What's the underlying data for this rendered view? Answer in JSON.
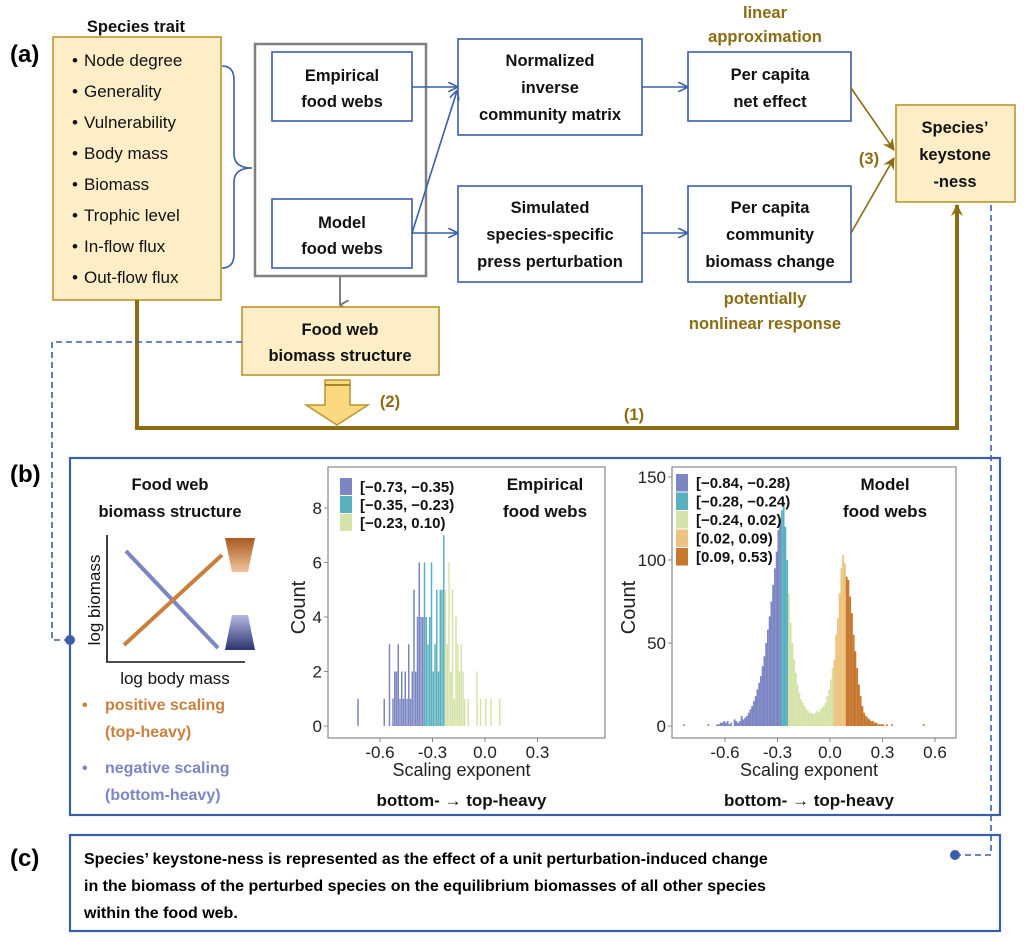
{
  "panel_labels": {
    "a": "(a)",
    "b": "(b)",
    "c": "(c)"
  },
  "species_trait": {
    "title": "Species trait",
    "items": [
      "Node degree",
      "Generality",
      "Vulnerability",
      "Body mass",
      "Biomass",
      "Trophic level",
      "In-flow flux",
      "Out-flow flux"
    ]
  },
  "food_webs": {
    "empirical": [
      "Empirical",
      "food webs"
    ],
    "model": [
      "Model",
      "food webs"
    ]
  },
  "normalized_matrix": [
    "Normalized",
    "inverse",
    "community matrix"
  ],
  "simulated_perturbation": [
    "Simulated",
    "species-specific",
    "press perturbation"
  ],
  "net_effect": [
    "Per capita",
    "net effect"
  ],
  "biomass_change": [
    "Per capita",
    "community",
    "biomass change"
  ],
  "linear_note": [
    "linear",
    "approximation"
  ],
  "nonlinear_note": [
    "potentially",
    "nonlinear response"
  ],
  "keystone": [
    "Species’",
    "keystone",
    "-ness"
  ],
  "biomass_structure": [
    "Food web",
    "biomass structure"
  ],
  "path_labels": {
    "one": "(1)",
    "two": "(2)",
    "three": "(3)"
  },
  "colors": {
    "blue_box": "#3b5ea8",
    "yellow_fill": "#fdeec7",
    "olive": "#8a6c12",
    "positive": "#c9803f",
    "negative": "#7b86c2"
  },
  "schematic": {
    "title": [
      "Food web",
      "biomass structure"
    ],
    "ylabel": "log biomass",
    "xlabel": "log body mass",
    "positive": [
      "positive scaling",
      "(top-heavy)"
    ],
    "negative": [
      "negative scaling",
      "(bottom-heavy)"
    ]
  },
  "chart_data": [
    {
      "type": "bar",
      "title": [
        "Empirical",
        "food webs"
      ],
      "xlabel": "Scaling exponent",
      "ylabel": "Count",
      "caption": "bottom- → top-heavy",
      "xticks": [
        "-0.6",
        "-0.3",
        "0.0",
        "0.3"
      ],
      "xtick_values": [
        -0.6,
        -0.3,
        0.0,
        0.3
      ],
      "yticks": [
        "0",
        "2",
        "4",
        "6",
        "8"
      ],
      "ytick_values": [
        0,
        2,
        4,
        6,
        8
      ],
      "bin_width": 0.01,
      "legend": [
        {
          "label": "[−0.73, −0.35)",
          "color": "#7b86c2",
          "from": -0.73,
          "to": -0.35
        },
        {
          "label": "[−0.35, −0.23)",
          "color": "#5ab0bf",
          "from": -0.35,
          "to": -0.23
        },
        {
          "label": "[−0.23, 0.10)",
          "color": "#d5e3a8",
          "from": -0.23,
          "to": 0.1
        }
      ],
      "bins": [
        [
          -0.73,
          1
        ],
        [
          -0.58,
          1
        ],
        [
          -0.55,
          3
        ],
        [
          -0.53,
          1
        ],
        [
          -0.52,
          2
        ],
        [
          -0.51,
          2
        ],
        [
          -0.5,
          3
        ],
        [
          -0.49,
          1
        ],
        [
          -0.48,
          2
        ],
        [
          -0.47,
          1
        ],
        [
          -0.46,
          2
        ],
        [
          -0.45,
          1
        ],
        [
          -0.44,
          3
        ],
        [
          -0.43,
          1
        ],
        [
          -0.42,
          2
        ],
        [
          -0.41,
          5
        ],
        [
          -0.4,
          2
        ],
        [
          -0.39,
          4
        ],
        [
          -0.38,
          6
        ],
        [
          -0.37,
          4
        ],
        [
          -0.36,
          4
        ],
        [
          -0.35,
          6
        ],
        [
          -0.34,
          4
        ],
        [
          -0.33,
          3
        ],
        [
          -0.32,
          4
        ],
        [
          -0.31,
          6
        ],
        [
          -0.3,
          2
        ],
        [
          -0.29,
          3
        ],
        [
          -0.28,
          5
        ],
        [
          -0.27,
          2
        ],
        [
          -0.26,
          5
        ],
        [
          -0.25,
          5
        ],
        [
          -0.24,
          7
        ],
        [
          -0.23,
          5
        ],
        [
          -0.22,
          3
        ],
        [
          -0.21,
          6
        ],
        [
          -0.2,
          2
        ],
        [
          -0.19,
          5
        ],
        [
          -0.18,
          1
        ],
        [
          -0.17,
          4
        ],
        [
          -0.16,
          3
        ],
        [
          -0.15,
          2
        ],
        [
          -0.14,
          3
        ],
        [
          -0.13,
          2
        ],
        [
          -0.12,
          1
        ],
        [
          -0.1,
          1
        ],
        [
          -0.05,
          2
        ],
        [
          -0.03,
          1
        ],
        [
          0.0,
          1
        ],
        [
          0.03,
          1
        ],
        [
          0.08,
          1
        ]
      ]
    },
    {
      "type": "bar",
      "title": [
        "Model",
        "food webs"
      ],
      "xlabel": "Scaling exponent",
      "ylabel": "Count",
      "caption": "bottom- → top-heavy",
      "xticks": [
        "-0.6",
        "-0.3",
        "0.0",
        "0.3",
        "0.6"
      ],
      "xtick_values": [
        -0.6,
        -0.3,
        0.0,
        0.3,
        0.6
      ],
      "yticks": [
        "0",
        "50",
        "100",
        "150"
      ],
      "ytick_values": [
        0,
        50,
        100,
        150
      ],
      "bin_width": 0.01,
      "bin_start": -0.7,
      "legend": [
        {
          "label": "[−0.84, −0.28)",
          "color": "#7b86c2",
          "from": -0.84,
          "to": -0.28
        },
        {
          "label": "[−0.28, −0.24)",
          "color": "#5ab0bf",
          "from": -0.28,
          "to": -0.24
        },
        {
          "label": "[−0.24, 0.02)",
          "color": "#d5e3a8",
          "from": -0.24,
          "to": 0.02
        },
        {
          "label": "[0.02, 0.09)",
          "color": "#ecc47f",
          "from": 0.02,
          "to": 0.09
        },
        {
          "label": "[0.09, 0.53)",
          "color": "#c8772e",
          "from": 0.09,
          "to": 0.53
        }
      ],
      "counts": [
        1,
        0,
        0,
        0,
        0,
        1,
        1,
        2,
        2,
        3,
        2,
        3,
        1,
        2,
        0,
        4,
        3,
        2,
        3,
        6,
        4,
        5,
        6,
        8,
        10,
        12,
        15,
        18,
        22,
        26,
        30,
        36,
        42,
        50,
        58,
        66,
        75,
        85,
        95,
        105,
        118,
        125,
        130,
        135,
        120,
        100,
        80,
        62,
        50,
        40,
        32,
        25,
        20,
        16,
        14,
        12,
        10,
        9,
        8,
        8,
        7,
        8,
        9,
        8,
        10,
        11,
        12,
        14,
        18,
        22,
        28,
        35,
        40,
        55,
        65,
        80,
        95,
        103,
        98,
        90,
        88,
        78,
        68,
        55,
        45,
        35,
        25,
        18,
        12,
        8,
        6,
        5,
        4,
        3,
        3,
        2,
        2,
        1,
        1,
        1,
        1,
        0,
        1,
        0,
        0,
        1
      ],
      "outliers": [
        [
          -0.84,
          1
        ],
        [
          0.53,
          1
        ]
      ]
    }
  ],
  "description_c": [
    "Species’ keystone-ness is represented as the effect of a unit perturbation-induced change",
    "in the biomass of the perturbed species on the equilibrium biomasses of all other species",
    "within the food web."
  ]
}
